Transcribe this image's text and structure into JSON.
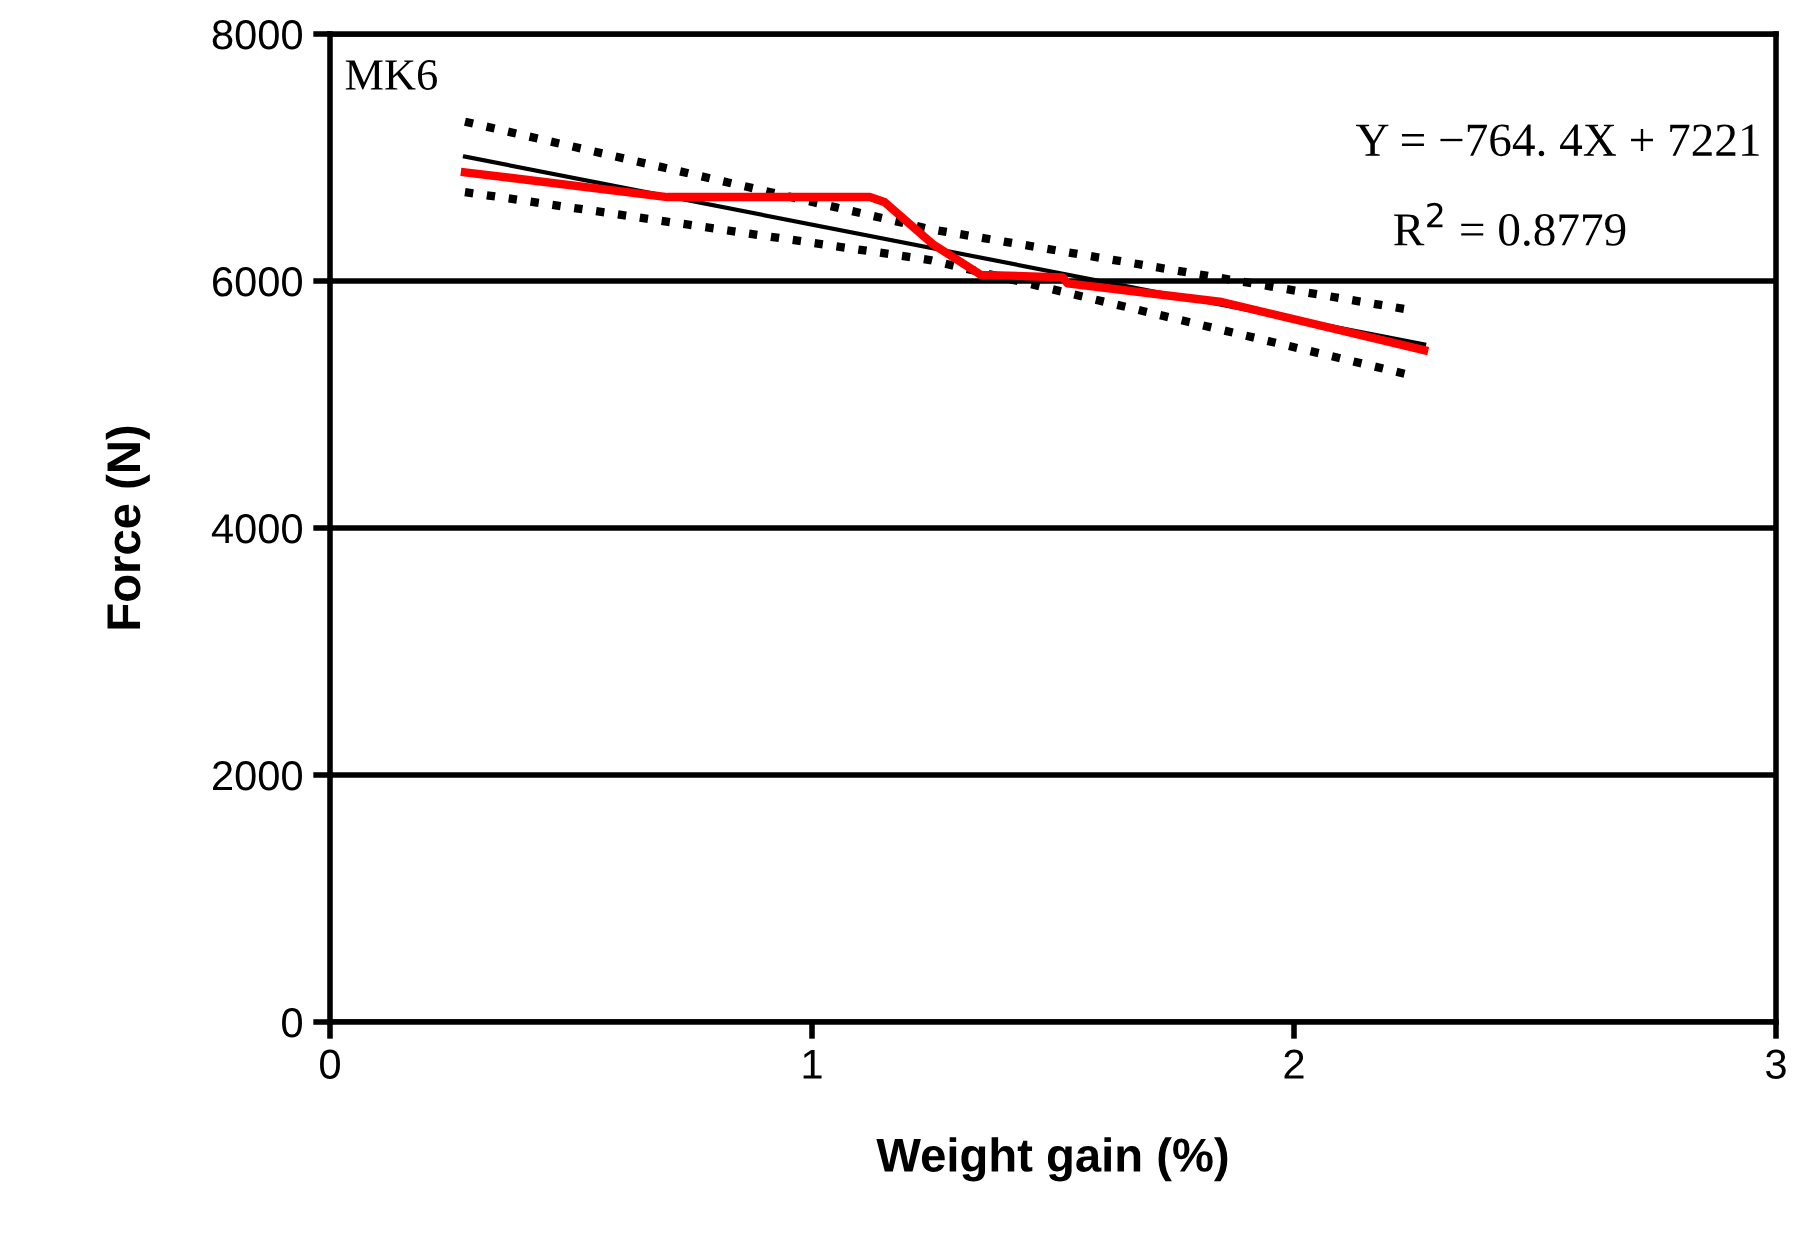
{
  "chart_data": {
    "type": "line",
    "xlabel": "Weight gain (%)",
    "ylabel": "Force (N)",
    "xlim": [
      0,
      3
    ],
    "xticks": [
      0,
      1,
      2,
      3
    ],
    "ylim": [
      0,
      8000
    ],
    "yticks": [
      0,
      2000,
      4000,
      6000,
      8000
    ],
    "grid": "y",
    "legend": false,
    "series": [
      {
        "color": "#000000",
        "line_style": "dotted",
        "x": [
          0.28,
          1.245,
          2.25
        ],
        "values": [
          7290,
          6420,
          5760
        ]
      },
      {
        "color": "#000000",
        "line_style": "dotted",
        "x": [
          0.28,
          1.245,
          2.25
        ],
        "values": [
          6720,
          6170,
          5230
        ]
      },
      {
        "color": "#000000",
        "line_style": "solid",
        "x": [
          0.28,
          2.27
        ],
        "values": [
          7007,
          5486
        ]
      },
      {
        "color": "#ff0000",
        "line_style": "solid",
        "x": [
          0.28,
          0.7,
          1.12,
          1.15,
          1.25,
          1.35,
          1.52,
          1.53,
          1.85,
          2.27
        ],
        "values": [
          6880,
          6680,
          6680,
          6640,
          6300,
          6050,
          6030,
          5980,
          5830,
          5440
        ]
      }
    ],
    "annotations": [
      "MK6",
      "Y = −764. 4X + 7221",
      "R$^{2}$ = 0.8779"
    ]
  }
}
